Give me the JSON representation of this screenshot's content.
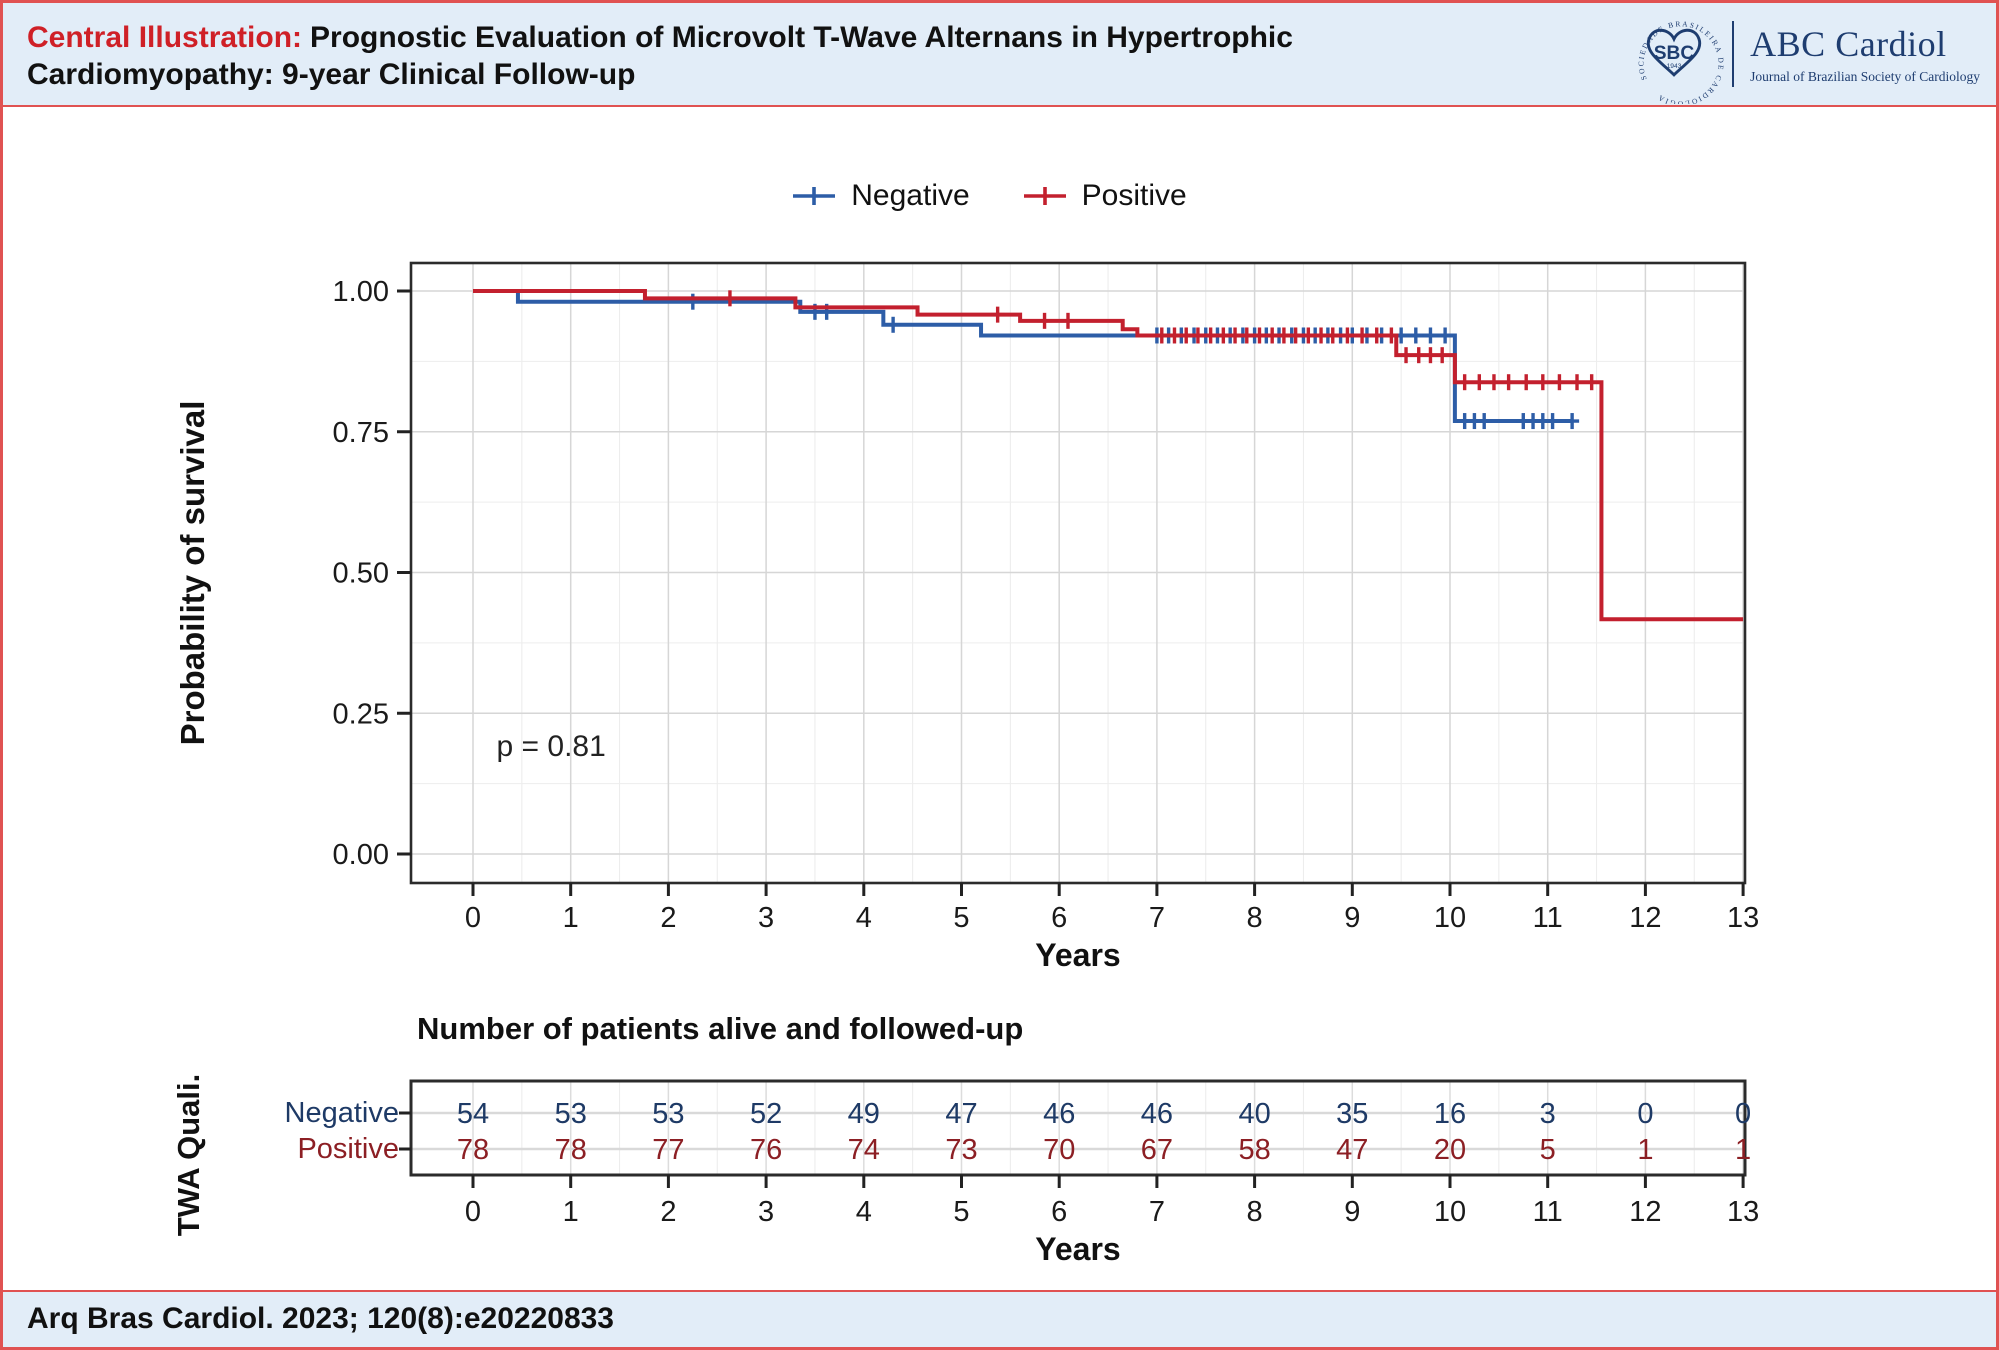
{
  "header": {
    "label": "Central Illustration:",
    "title_line1": "Prognostic Evaluation of Microvolt T-Wave Alternans in Hypertrophic",
    "title_line2": "Cardiomyopathy: 9-year Clinical Follow-up",
    "logo": {
      "ring_text": "SOCIEDADE BRASILEIRA DE CARDIOLOGIA",
      "sbc": "SBC",
      "year": "1943",
      "journal": "ABC Cardiol",
      "journal_sub": "Journal of Brazilian Society of Cardiology"
    }
  },
  "footer": {
    "citation": "Arq Bras Cardiol. 2023; 120(8):e20220833"
  },
  "colors": {
    "accent_red": "#cf2027",
    "frame_red": "#e05252",
    "header_bg": "#e2edf8",
    "navy": "#1e3d70",
    "curve_negative": "#2d5da7",
    "curve_positive": "#c3202e",
    "table_negative": "#1e3a66",
    "table_positive": "#8c1f24"
  },
  "chart_data": {
    "type": "line",
    "subtype": "kaplan-meier-step",
    "title": "",
    "xlabel": "Years",
    "ylabel": "Probability of survival",
    "xlim": [
      0,
      13
    ],
    "xticks": [
      0,
      1,
      2,
      3,
      4,
      5,
      6,
      7,
      8,
      9,
      10,
      11,
      12,
      13
    ],
    "ylim": [
      0,
      1
    ],
    "yticks": [
      0.0,
      0.25,
      0.5,
      0.75,
      1.0
    ],
    "ytick_labels": [
      "0.00",
      "0.25",
      "0.50",
      "0.75",
      "1.00"
    ],
    "grid": "on",
    "legend_position": "top-center",
    "annotation": {
      "text": "p = 0.81",
      "x": 0.8,
      "y": 0.19
    },
    "legend": {
      "entries": [
        {
          "label": "Negative",
          "color": "#2d5da7"
        },
        {
          "label": "Positive",
          "color": "#c3202e"
        }
      ]
    },
    "series": [
      {
        "name": "Negative",
        "color": "#2d5da7",
        "steps": [
          [
            0,
            1.0
          ],
          [
            0.46,
            0.981
          ],
          [
            3.35,
            0.963
          ],
          [
            4.2,
            0.94
          ],
          [
            5.2,
            0.921
          ],
          [
            10.05,
            0.769
          ]
        ],
        "end_x": 11.25,
        "censors": [
          [
            2.25,
            0.981
          ],
          [
            3.5,
            0.963
          ],
          [
            3.62,
            0.963
          ],
          [
            4.3,
            0.94
          ],
          [
            7.0,
            0.921
          ],
          [
            7.12,
            0.921
          ],
          [
            7.25,
            0.921
          ],
          [
            7.38,
            0.921
          ],
          [
            7.5,
            0.921
          ],
          [
            7.62,
            0.921
          ],
          [
            7.75,
            0.921
          ],
          [
            7.88,
            0.921
          ],
          [
            8.0,
            0.921
          ],
          [
            8.12,
            0.921
          ],
          [
            8.25,
            0.921
          ],
          [
            8.38,
            0.921
          ],
          [
            8.5,
            0.921
          ],
          [
            8.62,
            0.921
          ],
          [
            8.75,
            0.921
          ],
          [
            8.88,
            0.921
          ],
          [
            9.0,
            0.921
          ],
          [
            9.15,
            0.921
          ],
          [
            9.3,
            0.921
          ],
          [
            9.5,
            0.921
          ],
          [
            9.65,
            0.921
          ],
          [
            9.8,
            0.921
          ],
          [
            9.95,
            0.921
          ],
          [
            10.15,
            0.769
          ],
          [
            10.25,
            0.769
          ],
          [
            10.35,
            0.769
          ],
          [
            10.75,
            0.769
          ],
          [
            10.85,
            0.769
          ],
          [
            10.95,
            0.769
          ],
          [
            11.05,
            0.769
          ],
          [
            11.25,
            0.769
          ]
        ]
      },
      {
        "name": "Positive",
        "color": "#c3202e",
        "steps": [
          [
            0,
            1.0
          ],
          [
            1.76,
            0.987
          ],
          [
            3.3,
            0.971
          ],
          [
            4.55,
            0.958
          ],
          [
            5.6,
            0.947
          ],
          [
            6.65,
            0.932
          ],
          [
            6.8,
            0.921
          ],
          [
            9.45,
            0.886
          ],
          [
            10.05,
            0.838
          ],
          [
            11.55,
            0.417
          ]
        ],
        "end_x": 13,
        "censors": [
          [
            2.63,
            0.987
          ],
          [
            5.37,
            0.958
          ],
          [
            5.85,
            0.947
          ],
          [
            6.09,
            0.947
          ],
          [
            7.05,
            0.921
          ],
          [
            7.18,
            0.921
          ],
          [
            7.3,
            0.921
          ],
          [
            7.42,
            0.921
          ],
          [
            7.55,
            0.921
          ],
          [
            7.68,
            0.921
          ],
          [
            7.8,
            0.921
          ],
          [
            7.92,
            0.921
          ],
          [
            8.05,
            0.921
          ],
          [
            8.18,
            0.921
          ],
          [
            8.3,
            0.921
          ],
          [
            8.42,
            0.921
          ],
          [
            8.55,
            0.921
          ],
          [
            8.68,
            0.921
          ],
          [
            8.8,
            0.921
          ],
          [
            8.95,
            0.921
          ],
          [
            9.1,
            0.921
          ],
          [
            9.25,
            0.921
          ],
          [
            9.4,
            0.921
          ],
          [
            9.55,
            0.886
          ],
          [
            9.68,
            0.886
          ],
          [
            9.8,
            0.886
          ],
          [
            9.92,
            0.886
          ],
          [
            10.15,
            0.838
          ],
          [
            10.3,
            0.838
          ],
          [
            10.45,
            0.838
          ],
          [
            10.6,
            0.838
          ],
          [
            10.78,
            0.838
          ],
          [
            10.95,
            0.838
          ],
          [
            11.12,
            0.838
          ],
          [
            11.3,
            0.838
          ],
          [
            11.45,
            0.838
          ]
        ]
      }
    ],
    "risk_table": {
      "title": "Number of patients alive and followed-up",
      "group_axis_label": "TWA Quali.",
      "xlabel": "Years",
      "years": [
        0,
        1,
        2,
        3,
        4,
        5,
        6,
        7,
        8,
        9,
        10,
        11,
        12,
        13
      ],
      "rows": [
        {
          "label": "Negative",
          "color": "#1e3a66",
          "values": [
            54,
            53,
            53,
            52,
            49,
            47,
            46,
            46,
            40,
            35,
            16,
            3,
            0,
            0
          ]
        },
        {
          "label": "Positive",
          "color": "#8c1f24",
          "values": [
            78,
            78,
            77,
            76,
            74,
            73,
            70,
            67,
            58,
            47,
            20,
            5,
            1,
            1
          ]
        }
      ]
    }
  }
}
